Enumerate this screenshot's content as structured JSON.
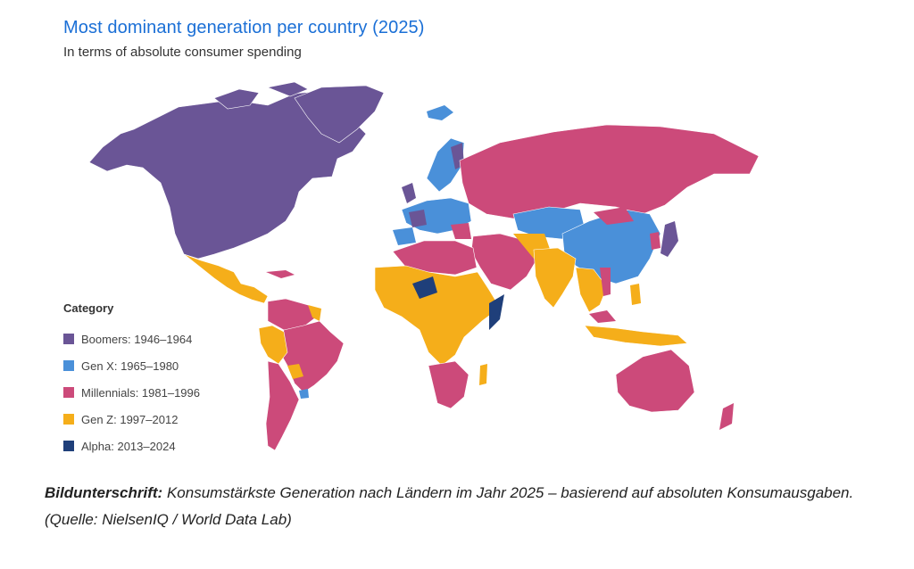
{
  "title": "Most dominant generation per country (2025)",
  "subtitle": "In terms of absolute consumer spending",
  "legend": {
    "title": "Category",
    "items": [
      {
        "label": "Boomers: 1946–1964",
        "color": "#6a5596"
      },
      {
        "label": "Gen X: 1965–1980",
        "color": "#4a90d9"
      },
      {
        "label": "Millennials: 1981–1996",
        "color": "#cc4a7a"
      },
      {
        "label": "Gen Z: 1997–2012",
        "color": "#f5ae1a"
      },
      {
        "label": "Alpha: 2013–2024",
        "color": "#1f3f7a"
      }
    ]
  },
  "caption": {
    "label": "Bildunterschrift:",
    "text": " Konsumstärkste Generation nach Ländern im Jahr 2025 – basierend auf absoluten Konsumausgaben. (Quelle: NielsenIQ / World Data Lab)"
  }
}
